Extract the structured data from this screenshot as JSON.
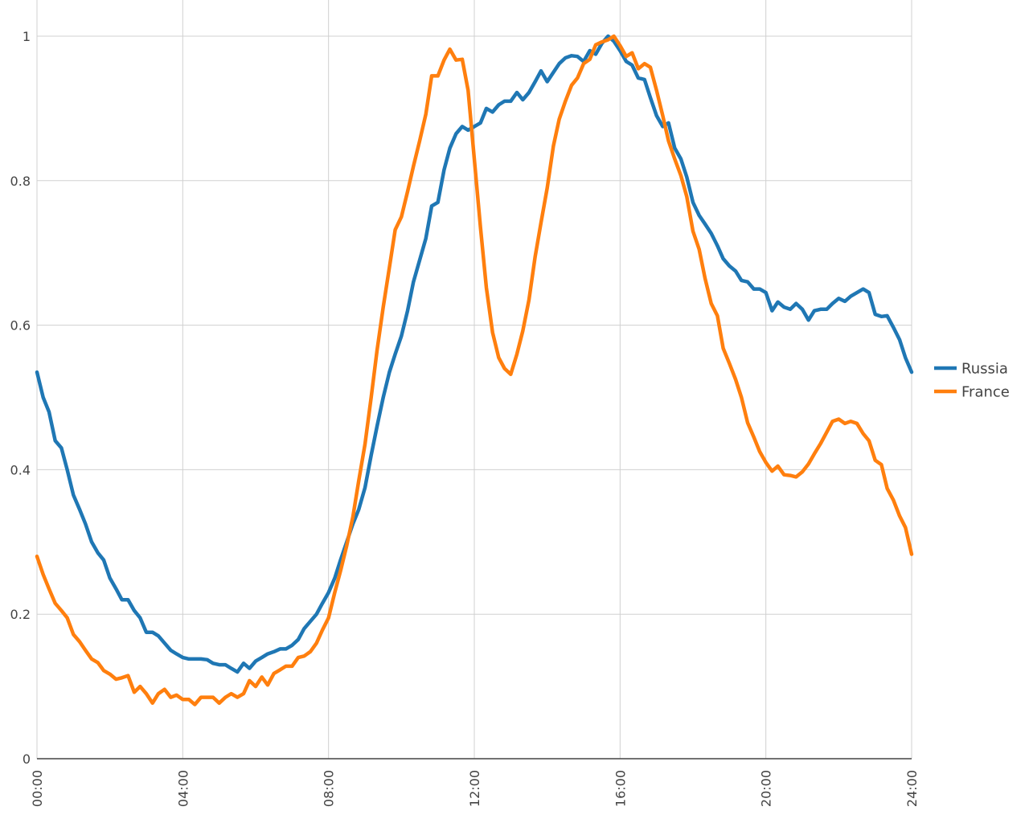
{
  "chart_data": {
    "type": "line",
    "title": "",
    "xlabel": "",
    "ylabel": "",
    "xlim": [
      0,
      24
    ],
    "ylim": [
      0,
      1
    ],
    "x_ticks": [
      {
        "value": 0,
        "label": "00:00"
      },
      {
        "value": 4,
        "label": "04:00"
      },
      {
        "value": 8,
        "label": "08:00"
      },
      {
        "value": 12,
        "label": "12:00"
      },
      {
        "value": 16,
        "label": "16:00"
      },
      {
        "value": 20,
        "label": "20:00"
      },
      {
        "value": 24,
        "label": "24:00"
      }
    ],
    "y_ticks": [
      {
        "value": 0,
        "label": "0"
      },
      {
        "value": 0.2,
        "label": "0.2"
      },
      {
        "value": 0.4,
        "label": "0.4"
      },
      {
        "value": 0.6,
        "label": "0.6"
      },
      {
        "value": 0.8,
        "label": "0.8"
      },
      {
        "value": 1,
        "label": "1"
      }
    ],
    "grid": true,
    "legend_position": "right",
    "series": [
      {
        "name": "Russia",
        "color": "#1f77b4",
        "points": [
          [
            0,
            0.535
          ],
          [
            0.17,
            0.5
          ],
          [
            0.33,
            0.48
          ],
          [
            0.5,
            0.44
          ],
          [
            0.67,
            0.43
          ],
          [
            0.83,
            0.4
          ],
          [
            1.0,
            0.365
          ],
          [
            1.17,
            0.345
          ],
          [
            1.33,
            0.325
          ],
          [
            1.5,
            0.3
          ],
          [
            1.67,
            0.285
          ],
          [
            1.83,
            0.275
          ],
          [
            2.0,
            0.25
          ],
          [
            2.17,
            0.235
          ],
          [
            2.33,
            0.22
          ],
          [
            2.5,
            0.22
          ],
          [
            2.67,
            0.205
          ],
          [
            2.83,
            0.195
          ],
          [
            3.0,
            0.175
          ],
          [
            3.17,
            0.175
          ],
          [
            3.33,
            0.17
          ],
          [
            3.5,
            0.16
          ],
          [
            3.67,
            0.15
          ],
          [
            3.83,
            0.145
          ],
          [
            4.0,
            0.14
          ],
          [
            4.17,
            0.138
          ],
          [
            4.33,
            0.138
          ],
          [
            4.5,
            0.138
          ],
          [
            4.67,
            0.137
          ],
          [
            4.83,
            0.132
          ],
          [
            5.0,
            0.13
          ],
          [
            5.17,
            0.13
          ],
          [
            5.33,
            0.125
          ],
          [
            5.5,
            0.12
          ],
          [
            5.67,
            0.132
          ],
          [
            5.83,
            0.125
          ],
          [
            6.0,
            0.135
          ],
          [
            6.17,
            0.14
          ],
          [
            6.33,
            0.145
          ],
          [
            6.5,
            0.148
          ],
          [
            6.67,
            0.152
          ],
          [
            6.83,
            0.152
          ],
          [
            7.0,
            0.157
          ],
          [
            7.17,
            0.165
          ],
          [
            7.33,
            0.18
          ],
          [
            7.5,
            0.19
          ],
          [
            7.67,
            0.2
          ],
          [
            7.83,
            0.215
          ],
          [
            8.0,
            0.23
          ],
          [
            8.17,
            0.25
          ],
          [
            8.33,
            0.275
          ],
          [
            8.5,
            0.3
          ],
          [
            8.67,
            0.325
          ],
          [
            8.83,
            0.345
          ],
          [
            9.0,
            0.375
          ],
          [
            9.17,
            0.42
          ],
          [
            9.33,
            0.46
          ],
          [
            9.5,
            0.5
          ],
          [
            9.67,
            0.535
          ],
          [
            9.83,
            0.56
          ],
          [
            10.0,
            0.585
          ],
          [
            10.17,
            0.62
          ],
          [
            10.33,
            0.66
          ],
          [
            10.5,
            0.69
          ],
          [
            10.67,
            0.72
          ],
          [
            10.83,
            0.765
          ],
          [
            11.0,
            0.77
          ],
          [
            11.17,
            0.815
          ],
          [
            11.33,
            0.845
          ],
          [
            11.5,
            0.865
          ],
          [
            11.67,
            0.875
          ],
          [
            11.83,
            0.87
          ],
          [
            12.0,
            0.875
          ],
          [
            12.17,
            0.88
          ],
          [
            12.33,
            0.9
          ],
          [
            12.5,
            0.895
          ],
          [
            12.67,
            0.905
          ],
          [
            12.83,
            0.91
          ],
          [
            13.0,
            0.91
          ],
          [
            13.17,
            0.922
          ],
          [
            13.33,
            0.912
          ],
          [
            13.5,
            0.922
          ],
          [
            13.67,
            0.937
          ],
          [
            13.83,
            0.952
          ],
          [
            14.0,
            0.937
          ],
          [
            14.17,
            0.95
          ],
          [
            14.33,
            0.962
          ],
          [
            14.5,
            0.97
          ],
          [
            14.67,
            0.973
          ],
          [
            14.83,
            0.972
          ],
          [
            15.0,
            0.965
          ],
          [
            15.17,
            0.98
          ],
          [
            15.33,
            0.975
          ],
          [
            15.5,
            0.99
          ],
          [
            15.67,
            1.0
          ],
          [
            15.83,
            0.993
          ],
          [
            16.0,
            0.98
          ],
          [
            16.17,
            0.965
          ],
          [
            16.33,
            0.96
          ],
          [
            16.5,
            0.942
          ],
          [
            16.67,
            0.94
          ],
          [
            16.83,
            0.915
          ],
          [
            17.0,
            0.89
          ],
          [
            17.17,
            0.875
          ],
          [
            17.33,
            0.88
          ],
          [
            17.5,
            0.845
          ],
          [
            17.67,
            0.83
          ],
          [
            17.83,
            0.805
          ],
          [
            18.0,
            0.77
          ],
          [
            18.17,
            0.752
          ],
          [
            18.33,
            0.74
          ],
          [
            18.5,
            0.727
          ],
          [
            18.67,
            0.71
          ],
          [
            18.83,
            0.692
          ],
          [
            19.0,
            0.682
          ],
          [
            19.17,
            0.675
          ],
          [
            19.33,
            0.662
          ],
          [
            19.5,
            0.66
          ],
          [
            19.67,
            0.65
          ],
          [
            19.83,
            0.65
          ],
          [
            20.0,
            0.645
          ],
          [
            20.17,
            0.62
          ],
          [
            20.33,
            0.632
          ],
          [
            20.5,
            0.625
          ],
          [
            20.67,
            0.622
          ],
          [
            20.83,
            0.63
          ],
          [
            21.0,
            0.622
          ],
          [
            21.17,
            0.607
          ],
          [
            21.33,
            0.62
          ],
          [
            21.5,
            0.622
          ],
          [
            21.67,
            0.622
          ],
          [
            21.83,
            0.63
          ],
          [
            22.0,
            0.637
          ],
          [
            22.17,
            0.633
          ],
          [
            22.33,
            0.64
          ],
          [
            22.5,
            0.645
          ],
          [
            22.67,
            0.65
          ],
          [
            22.83,
            0.645
          ],
          [
            23.0,
            0.615
          ],
          [
            23.17,
            0.612
          ],
          [
            23.33,
            0.613
          ],
          [
            23.5,
            0.597
          ],
          [
            23.67,
            0.58
          ],
          [
            23.83,
            0.555
          ],
          [
            24.0,
            0.535
          ]
        ]
      },
      {
        "name": "France",
        "color": "#ff7f0e",
        "points": [
          [
            0,
            0.28
          ],
          [
            0.17,
            0.255
          ],
          [
            0.33,
            0.235
          ],
          [
            0.5,
            0.215
          ],
          [
            0.67,
            0.205
          ],
          [
            0.83,
            0.195
          ],
          [
            1.0,
            0.172
          ],
          [
            1.17,
            0.162
          ],
          [
            1.33,
            0.15
          ],
          [
            1.5,
            0.138
          ],
          [
            1.67,
            0.133
          ],
          [
            1.83,
            0.122
          ],
          [
            2.0,
            0.117
          ],
          [
            2.17,
            0.11
          ],
          [
            2.33,
            0.112
          ],
          [
            2.5,
            0.115
          ],
          [
            2.67,
            0.092
          ],
          [
            2.83,
            0.1
          ],
          [
            3.0,
            0.09
          ],
          [
            3.17,
            0.077
          ],
          [
            3.33,
            0.09
          ],
          [
            3.5,
            0.096
          ],
          [
            3.67,
            0.085
          ],
          [
            3.83,
            0.088
          ],
          [
            4.0,
            0.082
          ],
          [
            4.17,
            0.082
          ],
          [
            4.33,
            0.075
          ],
          [
            4.5,
            0.085
          ],
          [
            4.67,
            0.085
          ],
          [
            4.83,
            0.085
          ],
          [
            5.0,
            0.077
          ],
          [
            5.17,
            0.085
          ],
          [
            5.33,
            0.09
          ],
          [
            5.5,
            0.085
          ],
          [
            5.67,
            0.09
          ],
          [
            5.83,
            0.108
          ],
          [
            6.0,
            0.1
          ],
          [
            6.17,
            0.113
          ],
          [
            6.33,
            0.102
          ],
          [
            6.5,
            0.118
          ],
          [
            6.67,
            0.123
          ],
          [
            6.83,
            0.128
          ],
          [
            7.0,
            0.128
          ],
          [
            7.17,
            0.14
          ],
          [
            7.33,
            0.142
          ],
          [
            7.5,
            0.148
          ],
          [
            7.67,
            0.16
          ],
          [
            7.83,
            0.178
          ],
          [
            8.0,
            0.195
          ],
          [
            8.17,
            0.23
          ],
          [
            8.33,
            0.26
          ],
          [
            8.5,
            0.295
          ],
          [
            8.67,
            0.335
          ],
          [
            8.83,
            0.385
          ],
          [
            9.0,
            0.435
          ],
          [
            9.17,
            0.5
          ],
          [
            9.33,
            0.565
          ],
          [
            9.5,
            0.625
          ],
          [
            9.67,
            0.68
          ],
          [
            9.83,
            0.732
          ],
          [
            10.0,
            0.75
          ],
          [
            10.17,
            0.785
          ],
          [
            10.33,
            0.82
          ],
          [
            10.5,
            0.855
          ],
          [
            10.67,
            0.892
          ],
          [
            10.83,
            0.945
          ],
          [
            11.0,
            0.945
          ],
          [
            11.17,
            0.967
          ],
          [
            11.33,
            0.982
          ],
          [
            11.5,
            0.967
          ],
          [
            11.67,
            0.968
          ],
          [
            11.83,
            0.925
          ],
          [
            12.0,
            0.83
          ],
          [
            12.17,
            0.735
          ],
          [
            12.33,
            0.652
          ],
          [
            12.5,
            0.59
          ],
          [
            12.67,
            0.555
          ],
          [
            12.83,
            0.54
          ],
          [
            13.0,
            0.532
          ],
          [
            13.17,
            0.56
          ],
          [
            13.33,
            0.592
          ],
          [
            13.5,
            0.635
          ],
          [
            13.67,
            0.695
          ],
          [
            13.83,
            0.742
          ],
          [
            14.0,
            0.79
          ],
          [
            14.17,
            0.848
          ],
          [
            14.33,
            0.885
          ],
          [
            14.5,
            0.91
          ],
          [
            14.67,
            0.932
          ],
          [
            14.83,
            0.942
          ],
          [
            15.0,
            0.962
          ],
          [
            15.17,
            0.968
          ],
          [
            15.33,
            0.988
          ],
          [
            15.5,
            0.992
          ],
          [
            15.67,
            0.995
          ],
          [
            15.83,
            1.0
          ],
          [
            16.0,
            0.987
          ],
          [
            16.17,
            0.972
          ],
          [
            16.33,
            0.977
          ],
          [
            16.5,
            0.955
          ],
          [
            16.67,
            0.962
          ],
          [
            16.83,
            0.957
          ],
          [
            17.0,
            0.925
          ],
          [
            17.17,
            0.89
          ],
          [
            17.33,
            0.855
          ],
          [
            17.5,
            0.83
          ],
          [
            17.67,
            0.807
          ],
          [
            17.83,
            0.778
          ],
          [
            18.0,
            0.73
          ],
          [
            18.17,
            0.705
          ],
          [
            18.33,
            0.665
          ],
          [
            18.5,
            0.63
          ],
          [
            18.67,
            0.613
          ],
          [
            18.83,
            0.568
          ],
          [
            19.0,
            0.547
          ],
          [
            19.17,
            0.525
          ],
          [
            19.33,
            0.5
          ],
          [
            19.5,
            0.465
          ],
          [
            19.67,
            0.445
          ],
          [
            19.83,
            0.425
          ],
          [
            20.0,
            0.41
          ],
          [
            20.17,
            0.398
          ],
          [
            20.33,
            0.405
          ],
          [
            20.5,
            0.393
          ],
          [
            20.67,
            0.392
          ],
          [
            20.83,
            0.39
          ],
          [
            21.0,
            0.397
          ],
          [
            21.17,
            0.408
          ],
          [
            21.33,
            0.422
          ],
          [
            21.5,
            0.436
          ],
          [
            21.67,
            0.452
          ],
          [
            21.83,
            0.467
          ],
          [
            22.0,
            0.47
          ],
          [
            22.17,
            0.464
          ],
          [
            22.33,
            0.467
          ],
          [
            22.5,
            0.464
          ],
          [
            22.67,
            0.45
          ],
          [
            22.83,
            0.44
          ],
          [
            23.0,
            0.413
          ],
          [
            23.17,
            0.407
          ],
          [
            23.33,
            0.374
          ],
          [
            23.5,
            0.358
          ],
          [
            23.67,
            0.336
          ],
          [
            23.83,
            0.32
          ],
          [
            24.0,
            0.283
          ]
        ]
      }
    ]
  }
}
